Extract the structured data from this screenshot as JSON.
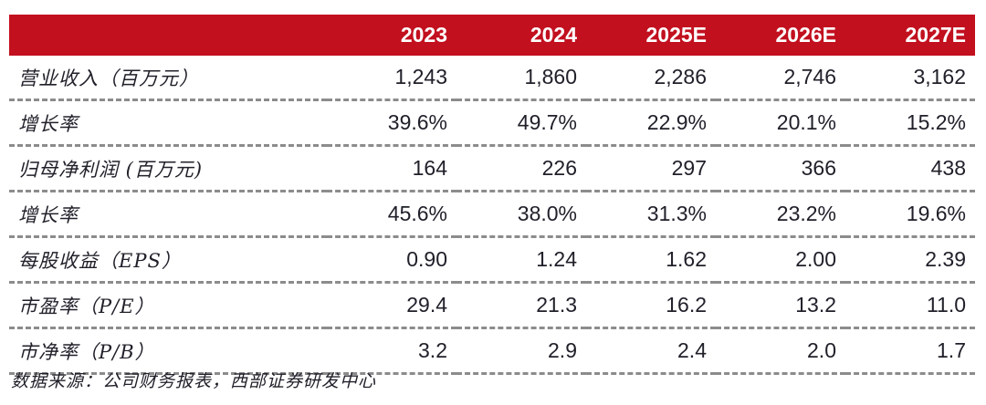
{
  "table": {
    "header": {
      "corner_label": "",
      "years": [
        "2023",
        "2024",
        "2025E",
        "2026E",
        "2027E"
      ]
    },
    "rows": [
      {
        "label": "营业收入（百万元）",
        "values": [
          "1,243",
          "1,860",
          "2,286",
          "2,746",
          "3,162"
        ]
      },
      {
        "label": "增长率",
        "values": [
          "39.6%",
          "49.7%",
          "22.9%",
          "20.1%",
          "15.2%"
        ]
      },
      {
        "label": "归母净利润 (百万元)",
        "values": [
          "164",
          "226",
          "297",
          "366",
          "438"
        ]
      },
      {
        "label": "增长率",
        "values": [
          "45.6%",
          "38.0%",
          "31.3%",
          "23.2%",
          "19.6%"
        ]
      },
      {
        "label": "每股收益（EPS）",
        "values": [
          "0.90",
          "1.24",
          "1.62",
          "2.00",
          "2.39"
        ]
      },
      {
        "label": "市盈率（P/E）",
        "values": [
          "29.4",
          "21.3",
          "16.2",
          "13.2",
          "11.0"
        ]
      },
      {
        "label": "市净率（P/B）",
        "values": [
          "3.2",
          "2.9",
          "2.4",
          "2.0",
          "1.7"
        ]
      }
    ]
  },
  "footer": {
    "source_note": "数据来源：公司财务报表，西部证券研发中心"
  },
  "colors": {
    "header_bg": "#c2101f",
    "header_text": "#ffffff",
    "body_text": "#20202a",
    "divider": "#8c8c8c"
  }
}
